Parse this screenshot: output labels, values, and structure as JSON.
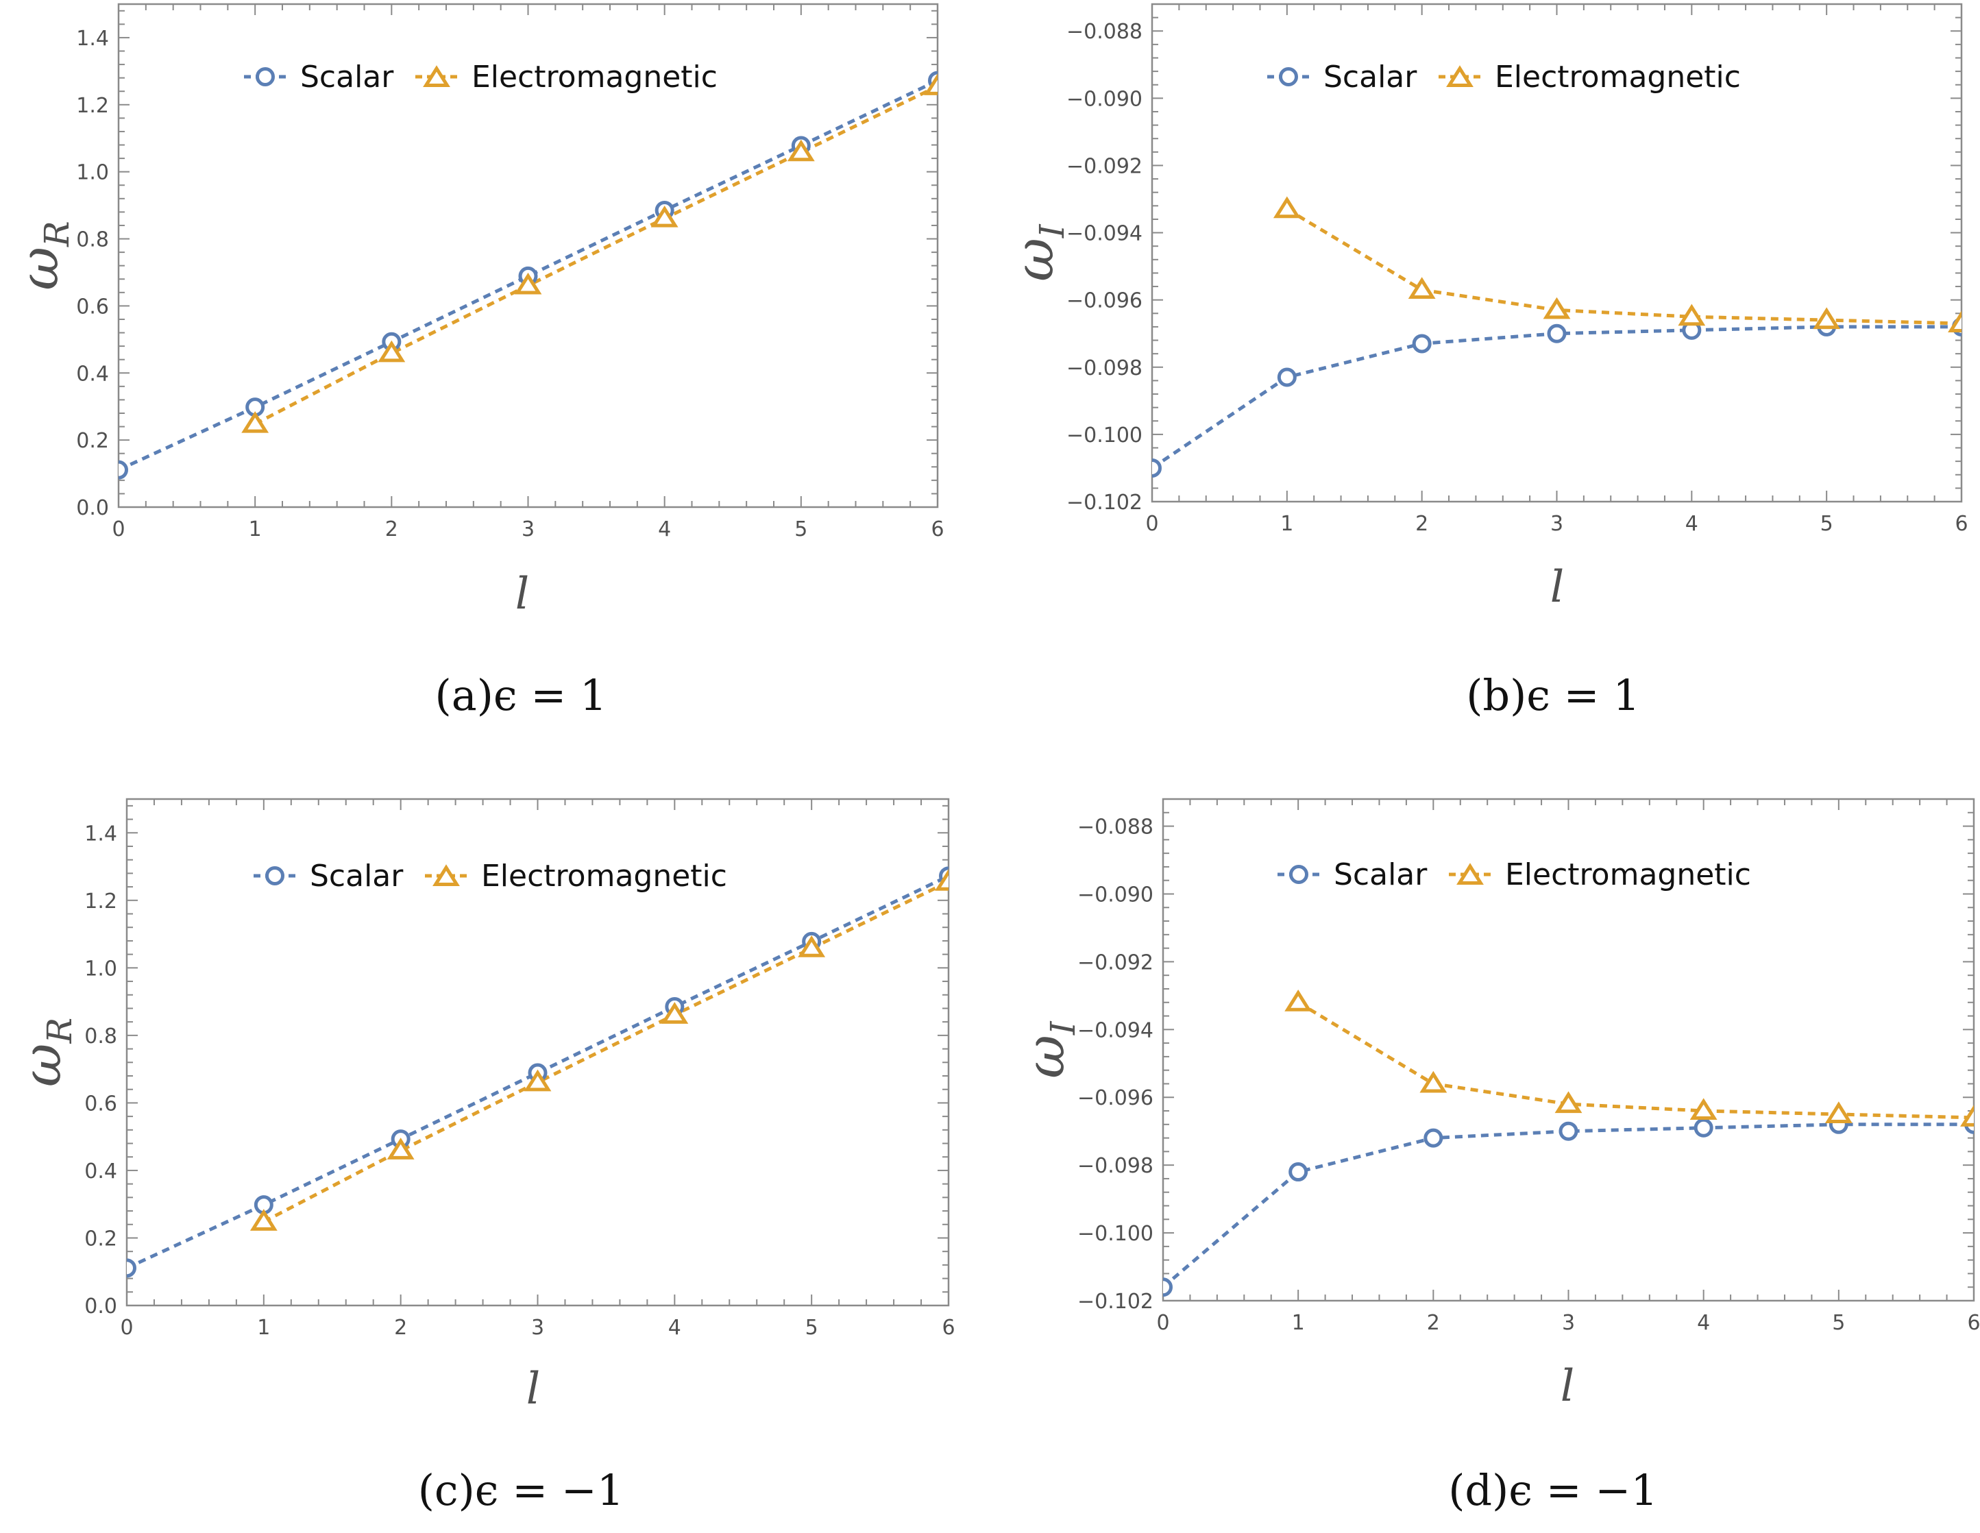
{
  "colors": {
    "scalar": "#5b7fb5",
    "electromagnetic": "#e0a02c",
    "frame": "#8a8a8a",
    "tick_text": "#505050"
  },
  "legend": {
    "scalar_label": "Scalar",
    "em_label": "Electromagnetic"
  },
  "chart_data": [
    {
      "id": "a",
      "type": "line",
      "caption": "(a)ϵ = 1",
      "xlabel": "l",
      "ylabel_base": "ω",
      "ylabel_sub": "R",
      "xlim": [
        0,
        6
      ],
      "ylim": [
        0,
        1.5
      ],
      "x_ticks": [
        "0",
        "1",
        "2",
        "3",
        "4",
        "5",
        "6"
      ],
      "y_ticks": [
        "0.0",
        "0.2",
        "0.4",
        "0.6",
        "0.8",
        "1.0",
        "1.2",
        "1.4"
      ],
      "series": [
        {
          "name": "Scalar",
          "marker": "circle",
          "x": [
            0,
            1,
            2,
            3,
            4,
            5,
            6
          ],
          "values": [
            0.111,
            0.298,
            0.493,
            0.689,
            0.885,
            1.078,
            1.272
          ]
        },
        {
          "name": "Electromagnetic",
          "marker": "triangle",
          "x": [
            1,
            2,
            3,
            4,
            5,
            6
          ],
          "values": [
            0.248,
            0.459,
            0.661,
            0.861,
            1.058,
            1.255
          ]
        }
      ]
    },
    {
      "id": "b",
      "type": "line",
      "caption": "(b)ϵ = 1",
      "xlabel": "l",
      "ylabel_base": "ω",
      "ylabel_sub": "I",
      "xlim": [
        0,
        6
      ],
      "ylim": [
        -0.102,
        -0.0872
      ],
      "x_ticks": [
        "0",
        "1",
        "2",
        "3",
        "4",
        "5",
        "6"
      ],
      "y_ticks": [
        "−0.102",
        "−0.100",
        "−0.098",
        "−0.096",
        "−0.094",
        "−0.092",
        "−0.090",
        "−0.088"
      ],
      "series": [
        {
          "name": "Scalar",
          "marker": "circle",
          "x": [
            0,
            1,
            2,
            3,
            4,
            5,
            6
          ],
          "values": [
            -0.101,
            -0.0983,
            -0.0973,
            -0.097,
            -0.0969,
            -0.0968,
            -0.0968
          ]
        },
        {
          "name": "Electromagnetic",
          "marker": "triangle",
          "x": [
            1,
            2,
            3,
            4,
            5,
            6
          ],
          "values": [
            -0.0933,
            -0.0957,
            -0.0963,
            -0.0965,
            -0.0966,
            -0.0967
          ]
        }
      ]
    },
    {
      "id": "c",
      "type": "line",
      "caption": "(c)ϵ = −1",
      "xlabel": "l",
      "ylabel_base": "ω",
      "ylabel_sub": "R",
      "xlim": [
        0,
        6
      ],
      "ylim": [
        0,
        1.5
      ],
      "x_ticks": [
        "0",
        "1",
        "2",
        "3",
        "4",
        "5",
        "6"
      ],
      "y_ticks": [
        "0.0",
        "0.2",
        "0.4",
        "0.6",
        "0.8",
        "1.0",
        "1.2",
        "1.4"
      ],
      "series": [
        {
          "name": "Scalar",
          "marker": "circle",
          "x": [
            0,
            1,
            2,
            3,
            4,
            5,
            6
          ],
          "values": [
            0.111,
            0.298,
            0.493,
            0.689,
            0.885,
            1.078,
            1.272
          ]
        },
        {
          "name": "Electromagnetic",
          "marker": "triangle",
          "x": [
            1,
            2,
            3,
            4,
            5,
            6
          ],
          "values": [
            0.248,
            0.459,
            0.661,
            0.861,
            1.058,
            1.255
          ]
        }
      ]
    },
    {
      "id": "d",
      "type": "line",
      "caption": "(d)ϵ = −1",
      "xlabel": "l",
      "ylabel_base": "ω",
      "ylabel_sub": "I",
      "xlim": [
        0,
        6
      ],
      "ylim": [
        -0.102,
        -0.0872
      ],
      "x_ticks": [
        "0",
        "1",
        "2",
        "3",
        "4",
        "5",
        "6"
      ],
      "y_ticks": [
        "−0.102",
        "−0.100",
        "−0.098",
        "−0.096",
        "−0.094",
        "−0.092",
        "−0.090",
        "−0.088"
      ],
      "series": [
        {
          "name": "Scalar",
          "marker": "circle",
          "x": [
            0,
            1,
            2,
            3,
            4,
            5,
            6
          ],
          "values": [
            -0.1016,
            -0.0982,
            -0.0972,
            -0.097,
            -0.0969,
            -0.0968,
            -0.0968
          ]
        },
        {
          "name": "Electromagnetic",
          "marker": "triangle",
          "x": [
            1,
            2,
            3,
            4,
            5,
            6
          ],
          "values": [
            -0.0932,
            -0.0956,
            -0.0962,
            -0.0964,
            -0.0965,
            -0.0966
          ]
        }
      ]
    }
  ]
}
